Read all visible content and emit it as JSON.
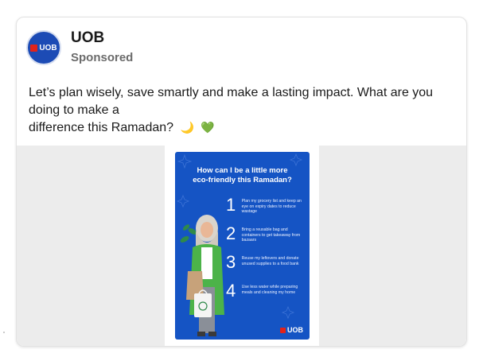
{
  "post": {
    "brand_name": "UOB",
    "sponsored_label": "Sponsored",
    "text_line1": "Let’s plan wisely, save smartly and make a lasting impact. What are you doing to make a",
    "text_line2": "difference this Ramadan?",
    "emoji_moon": "🌙",
    "emoji_heart": "💚"
  },
  "poster": {
    "title_line1": "How can I be a little more",
    "title_line2": "eco-friendly this Ramadan?",
    "steps": [
      {
        "num": "1",
        "text": "Plan my grocery list and keep an eye on expiry dates to reduce wastage"
      },
      {
        "num": "2",
        "text": "Bring a reusable bag and containers to get takeaway from bazaars"
      },
      {
        "num": "3",
        "text": "Reuse my leftovers and donate unused supplies to a food bank"
      },
      {
        "num": "4",
        "text": "Use less water while preparing meals and cleaning my home"
      }
    ],
    "logo_text": "UOB"
  },
  "colors": {
    "uob_blue": "#1554c4",
    "uob_red": "#e2231a"
  }
}
